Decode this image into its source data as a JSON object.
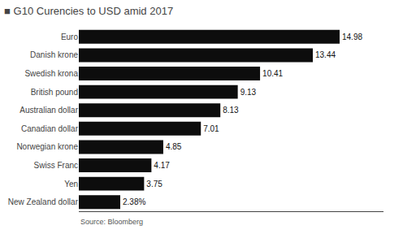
{
  "chart_data": {
    "type": "bar",
    "orientation": "horizontal",
    "title": "■ G10 Curencies to USD amid 2017",
    "categories": [
      "Euro",
      "Danish krone",
      "Swedish krona",
      "British pound",
      "Australian dollar",
      "Canadian dollar",
      "Norwegian krone",
      "Swiss Franc",
      "Yen",
      "New Zealand dollar"
    ],
    "values": [
      14.98,
      13.44,
      10.41,
      9.13,
      8.13,
      7.01,
      4.85,
      4.17,
      3.75,
      2.38
    ],
    "value_labels": [
      "14.98",
      "13.44",
      "10.41",
      "9.13",
      "8.13",
      "7.01",
      "4.85",
      "4.17",
      "3.75",
      "2.38%"
    ],
    "data_labels": true,
    "color": "#0d0d0d",
    "xlim": [
      0,
      17.5
    ],
    "grid": false,
    "tick_labels": "y",
    "annotations": [
      "Source: Bloomberg"
    ]
  }
}
